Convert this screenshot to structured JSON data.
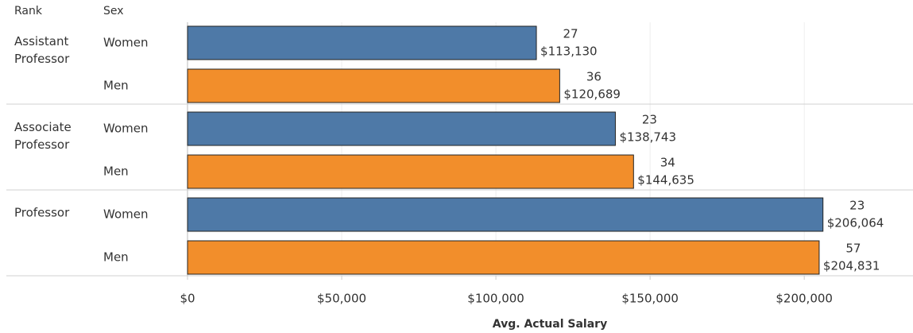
{
  "chart_data": {
    "type": "bar",
    "row_headers": [
      "Rank",
      "Sex"
    ],
    "groups": [
      "Assistant Professor",
      "Associate Professor",
      "Professor"
    ],
    "series": [
      {
        "name": "Women",
        "color": "#4e79a7",
        "values": [
          113130,
          138743,
          206064
        ],
        "value_labels": [
          "$113,130",
          "$138,743",
          "$206,064"
        ],
        "counts": [
          27,
          23,
          23
        ]
      },
      {
        "name": "Men",
        "color": "#f28e2b",
        "values": [
          120689,
          144635,
          204831
        ],
        "value_labels": [
          "$120,689",
          "$144,635",
          "$204,831"
        ],
        "counts": [
          36,
          34,
          57
        ]
      }
    ],
    "x_label": "Avg. Actual Salary",
    "xlim": [
      0,
      235000
    ],
    "xticks": [
      {
        "value": 0,
        "label": "$0"
      },
      {
        "value": 50000,
        "label": "$50,000"
      },
      {
        "value": 100000,
        "label": "$100,000"
      },
      {
        "value": 150000,
        "label": "$150,000"
      },
      {
        "value": 200000,
        "label": "$200,000"
      }
    ],
    "grid": true
  }
}
